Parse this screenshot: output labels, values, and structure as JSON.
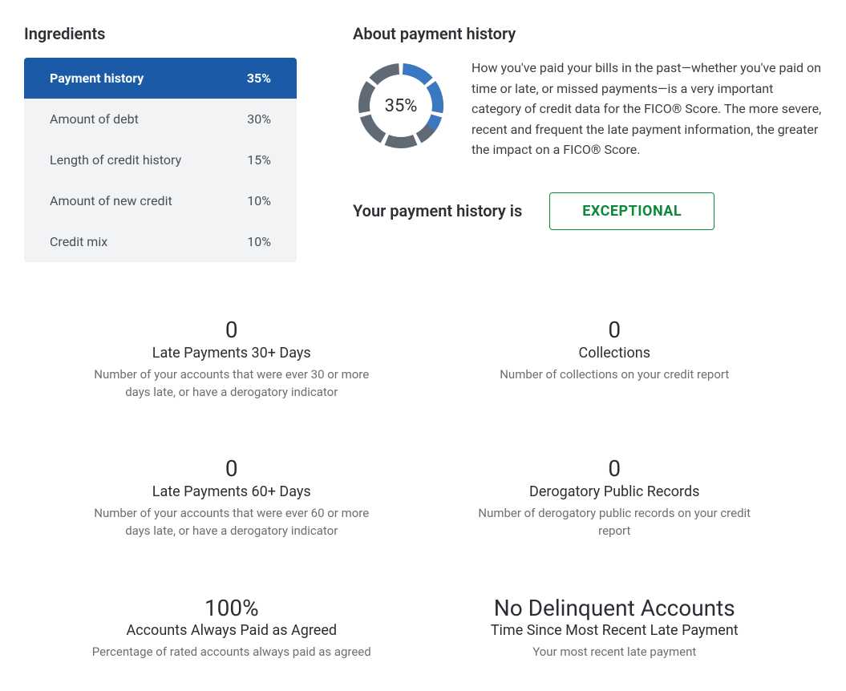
{
  "colors": {
    "brand_blue": "#1b5aa6",
    "donut_fill": "#3a78c2",
    "donut_rest": "#5f6a75",
    "badge_green": "#0a8a3a",
    "panel_bg": "#f2f3f4",
    "text_primary": "#2c2f33",
    "text_muted": "#6a6f75",
    "page_bg": "#ffffff"
  },
  "ingredients": {
    "title": "Ingredients",
    "active_index": 0,
    "items": [
      {
        "label": "Payment history",
        "pct": "35%"
      },
      {
        "label": "Amount of debt",
        "pct": "30%"
      },
      {
        "label": "Length of credit history",
        "pct": "15%"
      },
      {
        "label": "Amount of new credit",
        "pct": "10%"
      },
      {
        "label": "Credit mix",
        "pct": "10%"
      }
    ]
  },
  "about": {
    "title": "About payment history",
    "donut": {
      "percent_value": 35,
      "percent_label": "35%",
      "segments": 7,
      "gap_deg": 6,
      "stroke_width": 14,
      "radius": 46
    },
    "description": "How you've paid your bills in the past—whether you've paid on time or late, or missed payments—is a very important category of credit data for the FICO® Score. The more severe, recent and frequent the late payment information, the greater the impact on a FICO® Score."
  },
  "status": {
    "label": "Your payment history is",
    "value": "EXCEPTIONAL"
  },
  "stats": [
    {
      "value": "0",
      "title": "Late Payments 30+ Days",
      "desc": "Number of your accounts that were ever 30 or more days late, or have a derogatory indicator"
    },
    {
      "value": "0",
      "title": "Collections",
      "desc": "Number of collections on your credit report"
    },
    {
      "value": "0",
      "title": "Late Payments 60+ Days",
      "desc": "Number of your accounts that were ever 60 or more days late, or have a derogatory indicator"
    },
    {
      "value": "0",
      "title": "Derogatory Public Records",
      "desc": "Number of derogatory public records on your credit report"
    },
    {
      "value": "100%",
      "title": "Accounts Always Paid as Agreed",
      "desc": "Percentage of rated accounts always paid as agreed"
    },
    {
      "value": "No Delinquent Accounts",
      "title": "Time Since Most Recent Late Payment",
      "desc": "Your most recent late payment"
    }
  ]
}
